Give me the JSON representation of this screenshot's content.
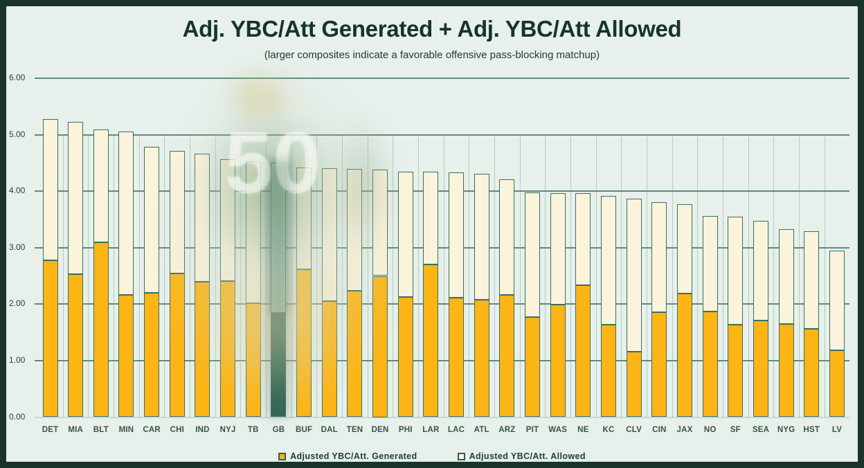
{
  "header": {
    "title": "Adj. YBC/Att Generated + Adj. YBC/Att Allowed",
    "subtitle": "(larger composites indicate a favorable offensive pass-blocking matchup)"
  },
  "watermark": {
    "jersey_number": "50"
  },
  "colors": {
    "frame_border": "#1c332a",
    "background": "#e7f0eb",
    "gridline": "#5d8b79",
    "bar_border": "#3a6e5e",
    "generated_orange": "#fdb515",
    "allowed_cream": "#fcf3dc",
    "highlight_generated_dark_teal": "#2e6a56",
    "highlight_allowed_light_teal": "#a6d4c3"
  },
  "chart_data": {
    "type": "bar",
    "stacked": true,
    "title": "Adj. YBC/Att Generated + Adj. YBC/Att Allowed",
    "subtitle": "(larger composites indicate a favorable offensive pass-blocking matchup)",
    "grid": true,
    "legend_position": "bottom",
    "ylim": [
      0,
      6
    ],
    "yticks": [
      "0.00",
      "1.00",
      "2.00",
      "3.00",
      "4.00",
      "5.00",
      "6.00"
    ],
    "categories": [
      "DET",
      "MIA",
      "BLT",
      "MIN",
      "CAR",
      "CHI",
      "IND",
      "NYJ",
      "TB",
      "GB",
      "BUF",
      "DAL",
      "TEN",
      "DEN",
      "PHI",
      "LAR",
      "LAC",
      "ATL",
      "ARZ",
      "PIT",
      "WAS",
      "NE",
      "KC",
      "CLV",
      "CIN",
      "JAX",
      "NO",
      "SF",
      "SEA",
      "NYG",
      "HST",
      "LV"
    ],
    "series": [
      {
        "name": "Adjusted YBC/Att. Generated",
        "color": "#fdb515",
        "values": [
          2.78,
          2.53,
          3.09,
          2.16,
          2.2,
          2.54,
          2.4,
          2.41,
          2.02,
          1.84,
          2.62,
          2.05,
          2.24,
          2.5,
          2.13,
          2.7,
          2.11,
          2.08,
          2.16,
          1.77,
          1.99,
          2.34,
          1.63,
          1.16,
          1.86,
          2.19,
          1.87,
          1.63,
          1.71,
          1.65,
          1.56,
          1.18
        ]
      },
      {
        "name": "Adjusted YBC/Att. Allowed",
        "color": "#fcf3dc",
        "values": [
          2.49,
          2.7,
          2.0,
          2.9,
          2.58,
          2.17,
          2.26,
          2.16,
          2.51,
          2.66,
          1.8,
          2.36,
          2.15,
          1.88,
          2.22,
          1.64,
          2.22,
          2.23,
          2.05,
          2.21,
          1.98,
          1.62,
          2.29,
          2.71,
          1.94,
          1.58,
          1.69,
          1.92,
          1.76,
          1.68,
          1.73,
          1.77
        ]
      }
    ],
    "totals": [
      5.27,
      5.23,
      5.09,
      5.06,
      4.78,
      4.71,
      4.66,
      4.57,
      4.53,
      4.5,
      4.42,
      4.41,
      4.39,
      4.38,
      4.35,
      4.34,
      4.33,
      4.31,
      4.21,
      3.98,
      3.97,
      3.96,
      3.92,
      3.87,
      3.8,
      3.77,
      3.56,
      3.55,
      3.47,
      3.33,
      3.29,
      2.95
    ],
    "highlight": {
      "category": "GB",
      "generated_color": "#2e6a56",
      "allowed_color": "#a6d4c3"
    }
  }
}
